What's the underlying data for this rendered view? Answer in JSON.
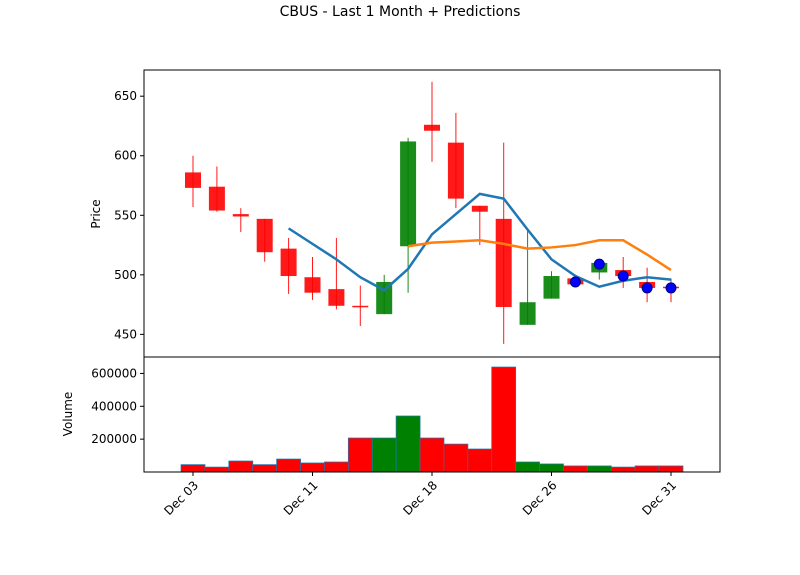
{
  "chart_data": [
    {
      "type": "candlestick",
      "title": "CBUS - Last 1 Month + Predictions",
      "ylabel": "Price",
      "ylim": [
        431,
        672
      ],
      "yticks": [
        450,
        500,
        550,
        600,
        650
      ],
      "up_color": "green",
      "down_color": "red",
      "open": [
        586,
        574,
        551,
        547,
        522,
        498,
        488,
        474,
        467,
        524,
        626,
        611,
        558,
        547,
        458,
        480,
        497,
        502,
        504,
        494,
        490
      ],
      "close": [
        573,
        554,
        549,
        519,
        499,
        485,
        474,
        473,
        494,
        612,
        621,
        564,
        553,
        473,
        477,
        499,
        492,
        510,
        499,
        489,
        489
      ],
      "high": [
        600,
        591,
        556,
        547,
        531,
        515,
        531,
        491,
        500,
        615,
        662,
        636,
        558,
        611,
        537,
        503,
        500,
        513,
        515,
        506,
        497
      ],
      "low": [
        557,
        553,
        536,
        511,
        484,
        479,
        471,
        457,
        467,
        485,
        595,
        556,
        525,
        442,
        458,
        480,
        490,
        496,
        489,
        477,
        477
      ],
      "series": [
        {
          "color": "#1f77b4",
          "values": [
            null,
            null,
            null,
            null,
            539,
            526,
            513,
            498,
            487,
            505,
            534,
            551,
            568,
            564,
            538,
            513,
            499,
            490,
            495,
            498,
            496
          ]
        },
        {
          "color": "#ff7f0e",
          "values": [
            null,
            null,
            null,
            null,
            null,
            null,
            null,
            null,
            null,
            524,
            527,
            528,
            529,
            526,
            522,
            523,
            525,
            529,
            529,
            517,
            504
          ]
        }
      ],
      "predictions": {
        "color": "blue",
        "values": [
          null,
          null,
          null,
          null,
          null,
          null,
          null,
          null,
          null,
          null,
          null,
          null,
          null,
          null,
          null,
          null,
          494,
          509,
          499,
          489,
          489
        ]
      }
    },
    {
      "type": "bar",
      "ylabel": "Volume",
      "ylim": [
        0,
        700000
      ],
      "yticks": [
        200000,
        400000,
        600000
      ],
      "categories": [
        "Dec 03",
        null,
        null,
        null,
        null,
        "Dec 11",
        null,
        null,
        null,
        null,
        "Dec 18",
        null,
        null,
        null,
        null,
        "Dec 26",
        null,
        null,
        null,
        null,
        "Dec 31"
      ],
      "values": [
        45000,
        30000,
        67000,
        45000,
        79000,
        55000,
        61000,
        207000,
        207000,
        341000,
        207000,
        170000,
        140000,
        639000,
        61000,
        49000,
        37000,
        37000,
        30000,
        37000,
        37000
      ]
    }
  ]
}
